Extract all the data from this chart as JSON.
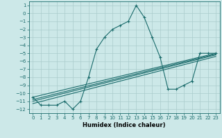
{
  "xlabel": "Humidex (Indice chaleur)",
  "bg_color": "#cce8e8",
  "grid_color": "#aacccc",
  "line_color": "#1a6b6b",
  "tick_color": "#1a6b6b",
  "xlim": [
    -0.5,
    23.5
  ],
  "ylim": [
    -12.5,
    1.5
  ],
  "yticks": [
    1,
    0,
    -1,
    -2,
    -3,
    -4,
    -5,
    -6,
    -7,
    -8,
    -9,
    -10,
    -11,
    -12
  ],
  "xticks": [
    0,
    1,
    2,
    3,
    4,
    5,
    6,
    7,
    8,
    9,
    10,
    11,
    12,
    13,
    14,
    15,
    16,
    17,
    18,
    19,
    20,
    21,
    22,
    23
  ],
  "main_series_x": [
    0,
    1,
    2,
    3,
    4,
    5,
    6,
    7,
    8,
    9,
    10,
    11,
    12,
    13,
    14,
    15,
    16,
    17,
    18,
    19,
    20,
    21,
    22,
    23
  ],
  "main_series_y": [
    -10.5,
    -11.5,
    -11.5,
    -11.5,
    -11.0,
    -12.0,
    -11.0,
    -8.0,
    -4.5,
    -3.0,
    -2.0,
    -1.5,
    -1.0,
    1.0,
    -0.5,
    -3.0,
    -5.5,
    -9.5,
    -9.5,
    -9.0,
    -8.5,
    -5.0,
    -5.0,
    -5.0
  ],
  "flat_lines": [
    {
      "x0": 0,
      "x1": 23,
      "y0": -10.5,
      "y1": -5.0
    },
    {
      "x0": 0,
      "x1": 23,
      "y0": -10.8,
      "y1": -5.1
    },
    {
      "x0": 0,
      "x1": 23,
      "y0": -11.0,
      "y1": -5.2
    },
    {
      "x0": 0,
      "x1": 23,
      "y0": -11.3,
      "y1": -5.4
    }
  ],
  "xlabel_fontsize": 6,
  "tick_fontsize": 5,
  "line_width": 0.8,
  "marker_size": 3
}
